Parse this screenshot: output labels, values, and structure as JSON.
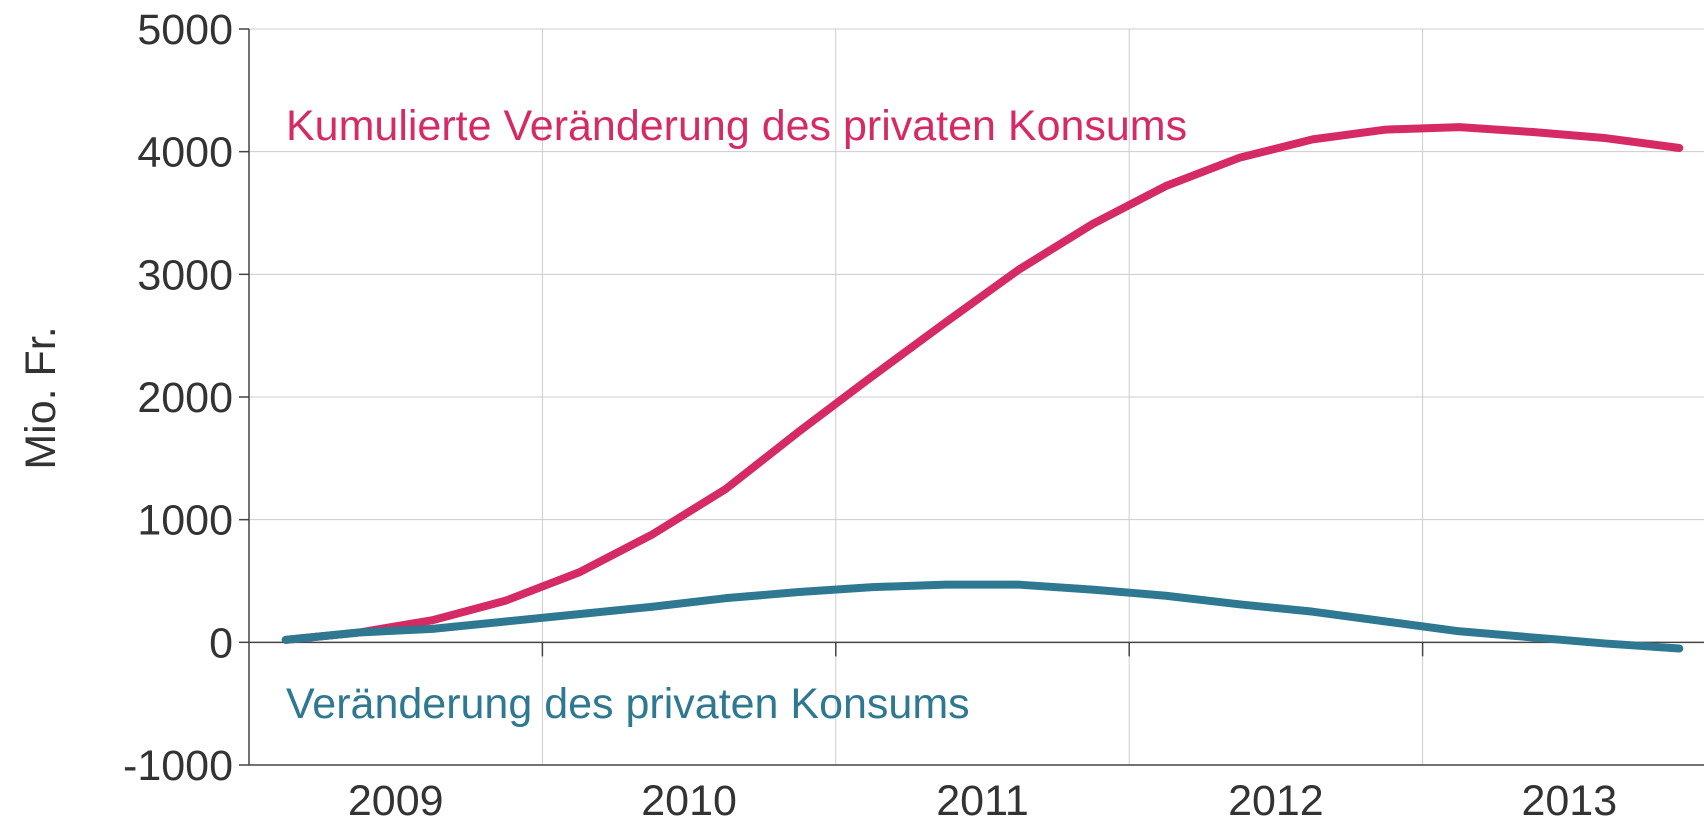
{
  "chart_data": {
    "type": "line",
    "y_label": "Mio. Fr.",
    "categories": [
      "2009",
      null,
      null,
      null,
      "2010",
      null,
      null,
      null,
      "2011",
      null,
      null,
      null,
      "2012",
      null,
      null,
      null,
      "2013",
      null,
      null,
      null
    ],
    "series": [
      {
        "name": "Kumulierte Veränderung des privaten Konsums",
        "color": "#d62a66",
        "values": [
          20,
          80,
          180,
          340,
          570,
          880,
          1250,
          1720,
          2170,
          2610,
          3040,
          3410,
          3720,
          3950,
          4100,
          4180,
          4200,
          4160,
          4110,
          4030
        ]
      },
      {
        "name": "Veränderung des privaten Konsums",
        "color": "#2e7891",
        "values": [
          20,
          80,
          110,
          170,
          230,
          290,
          360,
          410,
          450,
          470,
          470,
          430,
          380,
          310,
          250,
          170,
          90,
          40,
          -10,
          -50
        ]
      }
    ],
    "ylim": [
      -1000,
      5000
    ],
    "yticks": [
      -1000,
      0,
      1000,
      2000,
      3000,
      4000,
      5000
    ],
    "grid": true
  }
}
